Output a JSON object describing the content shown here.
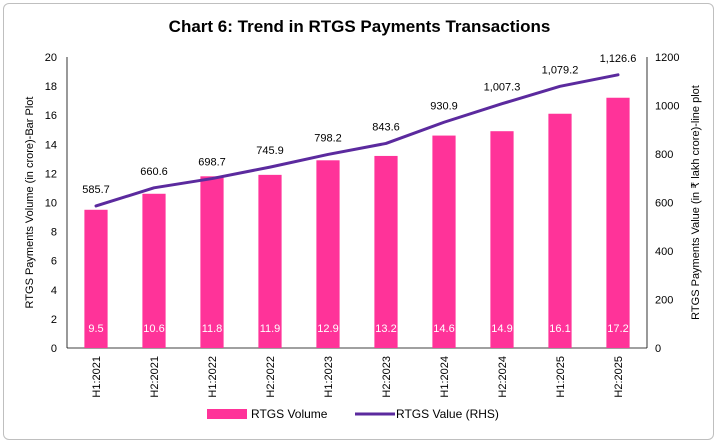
{
  "chart_data": {
    "type": "bar",
    "title": "Chart 6: Trend in RTGS Payments Transactions",
    "categories": [
      "H1:2021",
      "H2:2021",
      "H1:2022",
      "H2:2022",
      "H1:2023",
      "H2:2023",
      "H1:2024",
      "H2:2024",
      "H1:2025",
      "H2:2025"
    ],
    "series": [
      {
        "name": "RTGS  Volume",
        "type": "bar",
        "axis": "left",
        "values": [
          9.5,
          10.6,
          11.8,
          11.9,
          12.9,
          13.2,
          14.6,
          14.9,
          16.1,
          17.2
        ],
        "labels": [
          "9.5",
          "10.6",
          "11.8",
          "11.9",
          "12.9",
          "13.2",
          "14.6",
          "14.9",
          "16.1",
          "17.2"
        ],
        "color": "#ff3399"
      },
      {
        "name": "RTGS   Value (RHS)",
        "type": "line",
        "axis": "right",
        "values": [
          585.7,
          660.6,
          698.7,
          745.9,
          798.2,
          843.6,
          930.9,
          1007.3,
          1079.2,
          1126.6
        ],
        "labels": [
          "585.7",
          "660.6",
          "698.7",
          "745.9",
          "798.2",
          "843.6",
          "930.9",
          "1,007.3",
          "1,079.2",
          "1,126.6"
        ],
        "color": "#5b2a9e"
      }
    ],
    "ylabel": "RTGS Payments Volume (in crore)-Bar Plot",
    "y2label": "RTGS Payments Value (in ₹ lakh crore)-line plot",
    "ylim": [
      0,
      20
    ],
    "y2lim": [
      0,
      1200
    ],
    "yticks": [
      0,
      2,
      4,
      6,
      8,
      10,
      12,
      14,
      16,
      18,
      20
    ],
    "y2ticks": [
      0,
      200,
      400,
      600,
      800,
      1000,
      1200
    ],
    "grid": false,
    "legend": "bottom"
  }
}
